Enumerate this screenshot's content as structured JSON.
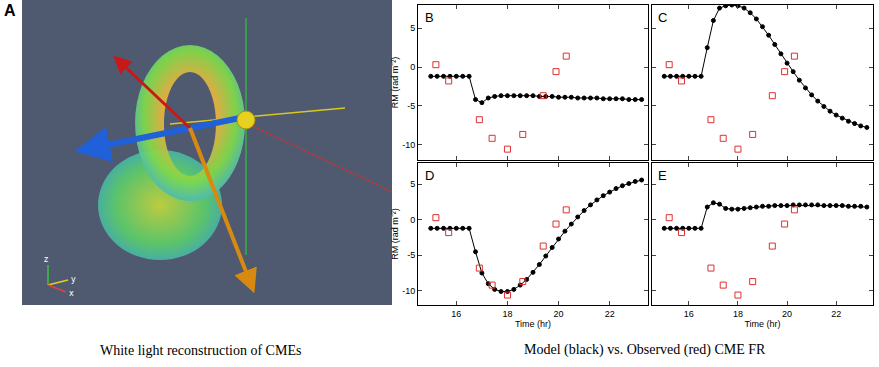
{
  "figure": {
    "panel_a_label": "A",
    "triad_labels": [
      "x",
      "y",
      "z"
    ],
    "caption_left": "White light reconstruction of CMEs",
    "caption_right": "Model (black) vs. Observed (red) CME FR"
  },
  "chart_data": [
    {
      "type": "line",
      "title": "B",
      "y_label": "RM (rad m⁻²)",
      "xlim": [
        14.5,
        23.5
      ],
      "ylim": [
        -12,
        8
      ],
      "xticks": [
        16,
        18,
        20,
        22
      ],
      "yticks": [
        -10,
        -5,
        0,
        5
      ],
      "grid": false,
      "tick_labels": "y",
      "series": [
        {
          "type": "line",
          "color": "#000000",
          "marker": "circle",
          "line_style": "solid",
          "x": [
            15,
            15.25,
            15.5,
            15.75,
            16,
            16.25,
            16.5,
            16.75,
            17,
            17.25,
            17.5,
            17.75,
            18,
            18.25,
            18.5,
            18.75,
            19,
            19.25,
            19.5,
            19.75,
            20,
            20.25,
            20.5,
            20.75,
            21,
            21.25,
            21.5,
            21.75,
            22,
            22.25,
            22.5,
            22.75,
            23,
            23.25
          ],
          "values": [
            -1.2,
            -1.2,
            -1.2,
            -1.2,
            -1.2,
            -1.2,
            -1.2,
            -4.2,
            -4.6,
            -4.0,
            -3.8,
            -3.7,
            -3.7,
            -3.7,
            -3.7,
            -3.7,
            -3.7,
            -3.8,
            -3.8,
            -3.8,
            -3.9,
            -3.9,
            -3.9,
            -4.0,
            -4.0,
            -4.0,
            -4.0,
            -4.1,
            -4.1,
            -4.1,
            -4.1,
            -4.2,
            -4.2,
            -4.2
          ]
        },
        {
          "type": "scatter",
          "color": "#e03030",
          "marker": "square-open",
          "line_style": "none",
          "x": [
            15.2,
            15.7,
            16.9,
            17.4,
            18.0,
            18.6,
            19.4,
            19.9,
            20.3
          ],
          "values": [
            0.3,
            -1.8,
            -6.8,
            -9.2,
            -10.6,
            -8.7,
            -3.7,
            -0.6,
            1.4
          ]
        }
      ]
    },
    {
      "type": "line",
      "title": "C",
      "xlim": [
        14.5,
        23.5
      ],
      "ylim": [
        -12,
        8
      ],
      "xticks": [
        16,
        18,
        20,
        22
      ],
      "yticks": [
        -10,
        -5,
        0,
        5
      ],
      "grid": false,
      "tick_labels": false,
      "series": [
        {
          "type": "line",
          "color": "#000000",
          "marker": "circle",
          "line_style": "solid",
          "x": [
            15,
            15.25,
            15.5,
            15.75,
            16,
            16.25,
            16.5,
            16.75,
            17,
            17.25,
            17.5,
            17.75,
            18,
            18.25,
            18.5,
            18.75,
            19,
            19.25,
            19.5,
            19.75,
            20,
            20.25,
            20.5,
            20.75,
            21,
            21.25,
            21.5,
            21.75,
            22,
            22.25,
            22.5,
            22.75,
            23,
            23.25
          ],
          "values": [
            -1.2,
            -1.2,
            -1.2,
            -1.2,
            -1.2,
            -1.2,
            -1.2,
            2.5,
            6.0,
            7.6,
            7.9,
            8.0,
            7.9,
            7.6,
            7.0,
            6.2,
            5.2,
            4.1,
            2.9,
            1.7,
            0.5,
            -0.6,
            -1.7,
            -2.7,
            -3.6,
            -4.4,
            -5.1,
            -5.7,
            -6.2,
            -6.6,
            -7.0,
            -7.3,
            -7.6,
            -7.8
          ]
        },
        {
          "type": "scatter",
          "color": "#e03030",
          "marker": "square-open",
          "line_style": "none",
          "x": [
            15.2,
            15.7,
            16.9,
            17.4,
            18.0,
            18.6,
            19.4,
            19.9,
            20.3
          ],
          "values": [
            0.3,
            -1.8,
            -6.8,
            -9.2,
            -10.6,
            -8.7,
            -3.7,
            -0.6,
            1.4
          ]
        }
      ]
    },
    {
      "type": "line",
      "title": "D",
      "x_label": "Time (hr)",
      "y_label": "RM (rad m⁻²)",
      "xlim": [
        14.5,
        23.5
      ],
      "ylim": [
        -12,
        8
      ],
      "xticks": [
        16,
        18,
        20,
        22
      ],
      "yticks": [
        -10,
        -5,
        0,
        5
      ],
      "grid": false,
      "tick_labels": true,
      "series": [
        {
          "type": "line",
          "color": "#000000",
          "marker": "circle",
          "line_style": "solid",
          "x": [
            15,
            15.25,
            15.5,
            15.75,
            16,
            16.25,
            16.5,
            16.75,
            17,
            17.25,
            17.5,
            17.75,
            18,
            18.25,
            18.5,
            18.75,
            19,
            19.25,
            19.5,
            19.75,
            20,
            20.25,
            20.5,
            20.75,
            21,
            21.25,
            21.5,
            21.75,
            22,
            22.25,
            22.5,
            22.75,
            23,
            23.25
          ],
          "values": [
            -1.2,
            -1.2,
            -1.2,
            -1.2,
            -1.2,
            -1.2,
            -1.2,
            -4.5,
            -7.5,
            -9.0,
            -9.8,
            -10.1,
            -10.1,
            -9.8,
            -9.2,
            -8.4,
            -7.4,
            -6.3,
            -5.1,
            -3.9,
            -2.7,
            -1.6,
            -0.6,
            0.4,
            1.3,
            2.1,
            2.8,
            3.4,
            3.9,
            4.4,
            4.8,
            5.1,
            5.4,
            5.6
          ]
        },
        {
          "type": "scatter",
          "color": "#e03030",
          "marker": "square-open",
          "line_style": "none",
          "x": [
            15.2,
            15.7,
            16.9,
            17.4,
            18.0,
            18.6,
            19.4,
            19.9,
            20.3
          ],
          "values": [
            0.3,
            -1.8,
            -6.8,
            -9.2,
            -10.6,
            -8.7,
            -3.7,
            -0.6,
            1.4
          ]
        }
      ]
    },
    {
      "type": "line",
      "title": "E",
      "x_label": "Time (hr)",
      "xlim": [
        14.5,
        23.5
      ],
      "ylim": [
        -12,
        8
      ],
      "xticks": [
        16,
        18,
        20,
        22
      ],
      "yticks": [
        -10,
        -5,
        0,
        5
      ],
      "grid": false,
      "tick_labels": "x",
      "series": [
        {
          "type": "line",
          "color": "#000000",
          "marker": "circle",
          "line_style": "solid",
          "x": [
            15,
            15.25,
            15.5,
            15.75,
            16,
            16.25,
            16.5,
            16.75,
            17,
            17.25,
            17.5,
            17.75,
            18,
            18.25,
            18.5,
            18.75,
            19,
            19.25,
            19.5,
            19.75,
            20,
            20.25,
            20.5,
            20.75,
            21,
            21.25,
            21.5,
            21.75,
            22,
            22.25,
            22.5,
            22.75,
            23,
            23.25
          ],
          "values": [
            -1.2,
            -1.2,
            -1.2,
            -1.2,
            -1.2,
            -1.2,
            -1.2,
            1.8,
            2.4,
            2.2,
            1.6,
            1.5,
            1.5,
            1.6,
            1.7,
            1.8,
            1.9,
            1.9,
            2.0,
            2.0,
            2.0,
            2.1,
            2.1,
            2.1,
            2.1,
            2.1,
            2.0,
            2.0,
            2.0,
            2.0,
            1.9,
            1.9,
            1.9,
            1.8
          ]
        },
        {
          "type": "scatter",
          "color": "#e03030",
          "marker": "square-open",
          "line_style": "none",
          "x": [
            15.2,
            15.7,
            16.9,
            17.4,
            18.0,
            18.6,
            19.4,
            19.9,
            20.3
          ],
          "values": [
            0.3,
            -1.8,
            -6.8,
            -9.2,
            -10.6,
            -8.7,
            -3.7,
            -0.6,
            1.4
          ]
        }
      ]
    }
  ]
}
